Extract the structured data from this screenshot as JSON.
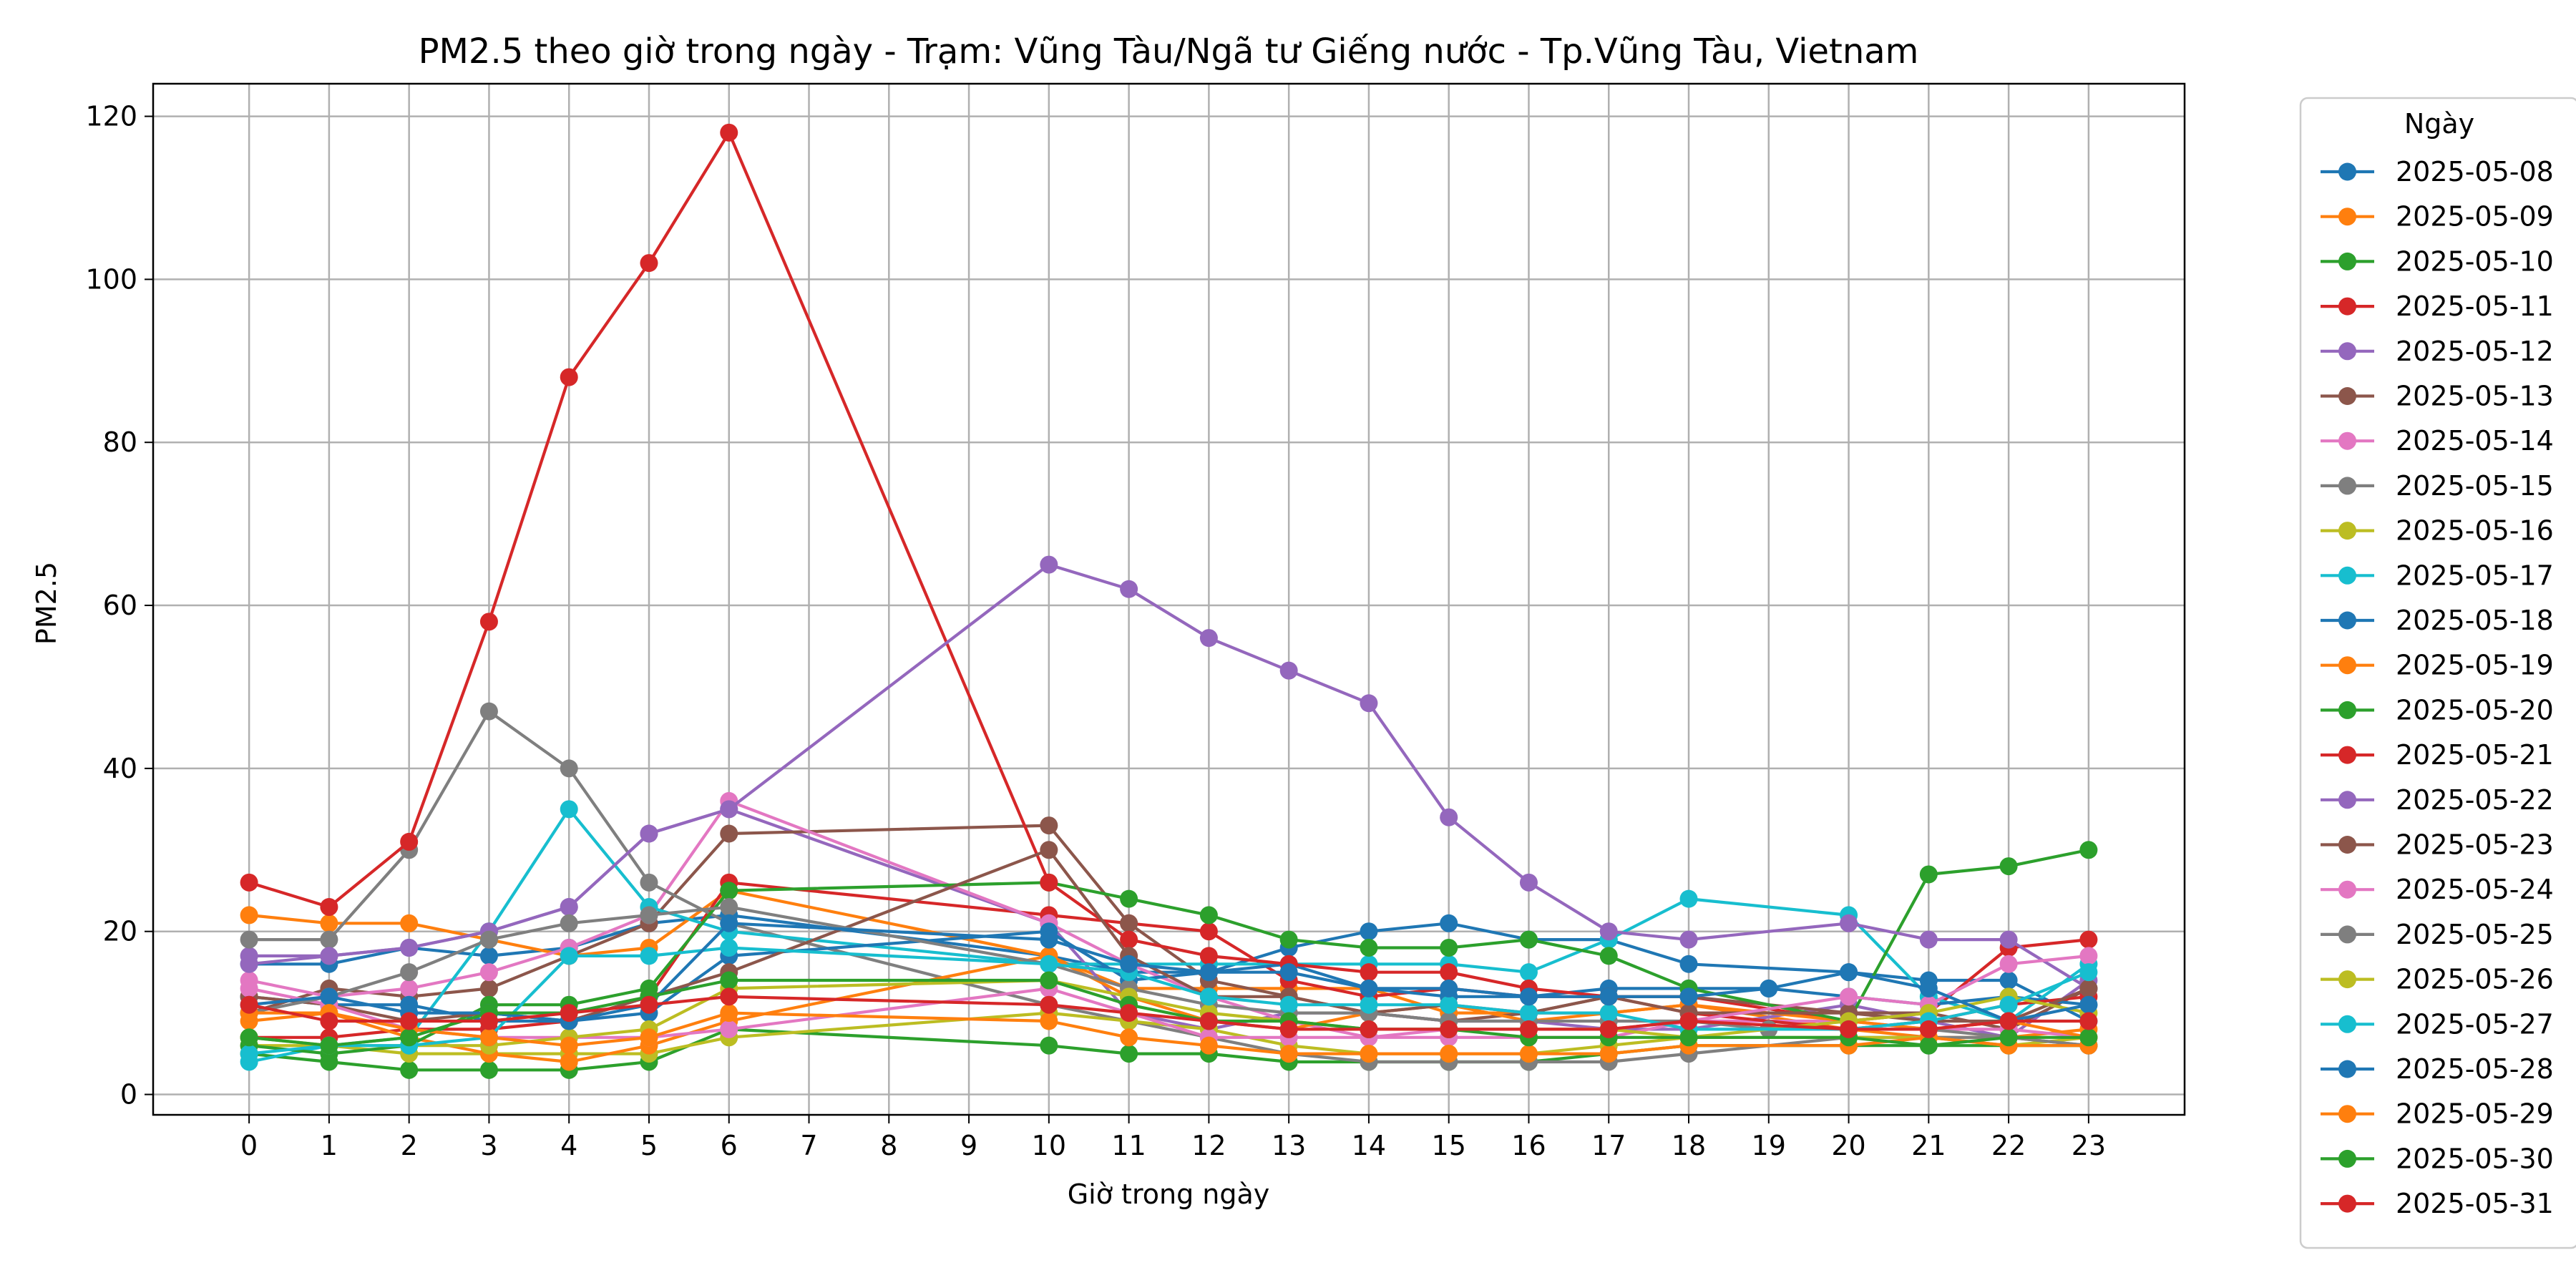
{
  "chart_data": {
    "type": "line",
    "title": "PM2.5 theo giờ trong ngày - Trạm: Vũng Tàu/Ngã tư Giếng nước - Tp.Vũng Tàu, Vietnam",
    "xlabel": "Giờ trong ngày",
    "ylabel": "PM2.5",
    "xticks": [
      0,
      1,
      2,
      3,
      4,
      5,
      6,
      7,
      8,
      9,
      10,
      11,
      12,
      13,
      14,
      15,
      16,
      17,
      18,
      19,
      20,
      21,
      22,
      23
    ],
    "yticks": [
      0,
      20,
      40,
      60,
      80,
      100,
      120
    ],
    "xlim": [
      -1.2,
      24.2
    ],
    "ylim": [
      -2.5,
      124
    ],
    "grid": true,
    "legend": {
      "title": "Ngày",
      "placement": "outside-right"
    },
    "series": [
      {
        "name": "2025-05-08",
        "color": "#1f77b4",
        "x": [
          0,
          1,
          2,
          3,
          4,
          5,
          6,
          10,
          11,
          12,
          13,
          14,
          15,
          16,
          17,
          18,
          20,
          21,
          22,
          23
        ],
        "y": [
          16,
          16,
          18,
          17,
          18,
          21,
          22,
          17,
          15,
          15,
          18,
          20,
          21,
          19,
          19,
          16,
          15,
          14,
          14,
          9
        ]
      },
      {
        "name": "2025-05-09",
        "color": "#ff7f0e",
        "x": [
          0,
          1,
          2,
          3,
          4,
          5,
          6,
          10,
          11,
          12,
          13,
          14,
          15,
          16,
          17,
          18,
          20,
          21,
          22,
          23
        ],
        "y": [
          22,
          21,
          21,
          19,
          17,
          18,
          25,
          17,
          13,
          13,
          13,
          13,
          10,
          10,
          10,
          11,
          8,
          7,
          7,
          8
        ]
      },
      {
        "name": "2025-05-10",
        "color": "#2ca02c",
        "x": [
          0,
          1,
          2,
          3,
          4,
          5,
          6,
          10,
          11,
          12,
          13,
          14,
          15,
          16,
          17,
          18,
          20,
          21,
          22,
          23
        ],
        "y": [
          5,
          4,
          3,
          3,
          3,
          4,
          8,
          6,
          5,
          5,
          4,
          4,
          4,
          4,
          5,
          6,
          6,
          6,
          6,
          6
        ]
      },
      {
        "name": "2025-05-11",
        "color": "#d62728",
        "x": [
          0,
          1,
          2,
          3,
          4,
          5,
          6,
          10,
          11,
          12,
          13,
          14,
          15,
          16,
          17,
          18,
          20,
          21,
          22,
          23
        ],
        "y": [
          7,
          7,
          8,
          8,
          9,
          12,
          26,
          22,
          21,
          20,
          14,
          12,
          13,
          12,
          12,
          12,
          9,
          10,
          18,
          19
        ]
      },
      {
        "name": "2025-05-12",
        "color": "#9467bd",
        "x": [
          0,
          1,
          2,
          3,
          4,
          5,
          6,
          10,
          11,
          12,
          13,
          14,
          15,
          16,
          17,
          18,
          20,
          21,
          22,
          23
        ],
        "y": [
          17,
          17,
          18,
          20,
          23,
          32,
          35,
          21,
          10,
          8,
          10,
          10,
          9,
          9,
          8,
          8,
          11,
          9,
          7,
          14
        ]
      },
      {
        "name": "2025-05-13",
        "color": "#8c564b",
        "x": [
          0,
          1,
          2,
          3,
          4,
          5,
          6,
          10,
          11,
          12,
          13,
          14,
          15,
          16,
          17,
          18,
          20,
          21,
          22,
          23
        ],
        "y": [
          10,
          13,
          12,
          13,
          17,
          21,
          32,
          33,
          21,
          14,
          12,
          10,
          9,
          10,
          12,
          12,
          10,
          10,
          8,
          13
        ]
      },
      {
        "name": "2025-05-14",
        "color": "#e377c2",
        "x": [
          0,
          1,
          2,
          3,
          4,
          5,
          6,
          10,
          11,
          12,
          13,
          14,
          15,
          16,
          17,
          18,
          20,
          21,
          22,
          23
        ],
        "y": [
          14,
          12,
          13,
          15,
          18,
          22,
          36,
          21,
          16,
          12,
          9,
          7,
          7,
          7,
          7,
          9,
          9,
          8,
          8,
          7
        ]
      },
      {
        "name": "2025-05-15",
        "color": "#7f7f7f",
        "x": [
          0,
          1,
          2,
          3,
          4,
          5,
          6,
          10,
          11,
          12,
          13,
          14,
          15,
          16,
          17,
          18,
          20,
          21,
          22,
          23
        ],
        "y": [
          19,
          19,
          30,
          47,
          40,
          26,
          21,
          11,
          9,
          7,
          5,
          4,
          4,
          4,
          4,
          5,
          7,
          7,
          7,
          6
        ]
      },
      {
        "name": "2025-05-16",
        "color": "#bcbd22",
        "x": [
          0,
          1,
          2,
          3,
          4,
          5,
          6,
          10,
          11,
          12,
          13,
          14,
          15,
          16,
          17,
          18,
          20,
          21,
          22,
          23
        ],
        "y": [
          6,
          6,
          5,
          5,
          5,
          5,
          7,
          10,
          9,
          8,
          6,
          5,
          5,
          5,
          6,
          7,
          7,
          7,
          6,
          7
        ]
      },
      {
        "name": "2025-05-17",
        "color": "#17becf",
        "x": [
          0,
          1,
          2,
          3,
          4,
          5,
          6,
          10,
          11,
          12,
          13,
          14,
          15,
          16,
          17,
          18,
          20,
          21,
          22,
          23
        ],
        "y": [
          4,
          6,
          7,
          20,
          35,
          23,
          20,
          16,
          16,
          16,
          16,
          16,
          16,
          15,
          19,
          24,
          22,
          12,
          9,
          16
        ]
      },
      {
        "name": "2025-05-18",
        "color": "#1f77b4",
        "x": [
          0,
          1,
          2,
          3,
          4,
          5,
          6,
          10,
          11,
          12,
          13,
          14,
          15,
          16,
          17,
          18,
          19,
          20,
          21,
          22,
          23
        ],
        "y": [
          12,
          11,
          11,
          9,
          9,
          10,
          17,
          20,
          14,
          15,
          16,
          13,
          12,
          12,
          13,
          13,
          13,
          12,
          11,
          12,
          11
        ]
      },
      {
        "name": "2025-05-19",
        "color": "#ff7f0e",
        "x": [
          0,
          1,
          2,
          3,
          4,
          5,
          6,
          10,
          11,
          12,
          13,
          14,
          15,
          16,
          17,
          18,
          20,
          21,
          22,
          23
        ],
        "y": [
          9,
          10,
          7,
          5,
          4,
          6,
          9,
          17,
          12,
          9,
          8,
          10,
          11,
          9,
          10,
          11,
          9,
          8,
          9,
          7
        ]
      },
      {
        "name": "2025-05-20",
        "color": "#2ca02c",
        "x": [
          0,
          1,
          2,
          3,
          4,
          5,
          6,
          10,
          11,
          12,
          13,
          14,
          15,
          16,
          17,
          18,
          20,
          21,
          22,
          23
        ],
        "y": [
          6,
          5,
          6,
          11,
          11,
          13,
          25,
          26,
          24,
          22,
          19,
          18,
          18,
          19,
          17,
          13,
          9,
          27,
          28,
          30
        ]
      },
      {
        "name": "2025-05-21",
        "color": "#d62728",
        "x": [
          0,
          1,
          2,
          3,
          4,
          5,
          6,
          10,
          11,
          12,
          13,
          14,
          15,
          16,
          17,
          18,
          20,
          21,
          22,
          23
        ],
        "y": [
          26,
          23,
          31,
          58,
          88,
          102,
          118,
          26,
          19,
          17,
          16,
          15,
          15,
          13,
          12,
          10,
          8,
          9,
          11,
          12
        ]
      },
      {
        "name": "2025-05-22",
        "color": "#9467bd",
        "x": [
          0,
          1,
          2,
          3,
          4,
          5,
          6,
          10,
          11,
          12,
          13,
          14,
          15,
          16,
          17,
          18,
          20,
          21,
          22,
          23
        ],
        "y": [
          16,
          17,
          18,
          20,
          23,
          32,
          35,
          65,
          62,
          56,
          52,
          48,
          34,
          26,
          20,
          19,
          21,
          19,
          19,
          13
        ]
      },
      {
        "name": "2025-05-23",
        "color": "#8c564b",
        "x": [
          0,
          1,
          2,
          3,
          4,
          5,
          6,
          10,
          11,
          12,
          13,
          14,
          15,
          16,
          17,
          18,
          20,
          21,
          22,
          23
        ],
        "y": [
          12,
          11,
          9,
          10,
          9,
          12,
          15,
          30,
          17,
          12,
          12,
          10,
          11,
          10,
          12,
          10,
          10,
          9,
          9,
          13
        ]
      },
      {
        "name": "2025-05-24",
        "color": "#e377c2",
        "x": [
          0,
          1,
          2,
          3,
          4,
          5,
          6,
          10,
          11,
          12,
          13,
          14,
          15,
          16,
          17,
          18,
          20,
          21,
          22,
          23
        ],
        "y": [
          13,
          11,
          8,
          7,
          7,
          7,
          8,
          13,
          10,
          7,
          7,
          7,
          8,
          8,
          8,
          9,
          12,
          11,
          16,
          17
        ]
      },
      {
        "name": "2025-05-25",
        "color": "#7f7f7f",
        "x": [
          0,
          1,
          2,
          3,
          4,
          5,
          6,
          10,
          11,
          12,
          13,
          14,
          15,
          16,
          17,
          18,
          19,
          20,
          21,
          22,
          23
        ],
        "y": [
          10,
          12,
          15,
          19,
          21,
          22,
          23,
          16,
          13,
          11,
          10,
          10,
          9,
          9,
          9,
          9,
          8,
          8,
          8,
          7,
          6
        ]
      },
      {
        "name": "2025-05-26",
        "color": "#bcbd22",
        "x": [
          0,
          1,
          2,
          3,
          4,
          5,
          6,
          10,
          11,
          12,
          13,
          14,
          15,
          16,
          17,
          18,
          20,
          21,
          22,
          23
        ],
        "y": [
          7,
          6,
          6,
          6,
          7,
          8,
          13,
          14,
          12,
          10,
          9,
          8,
          8,
          8,
          8,
          7,
          9,
          10,
          12,
          10
        ]
      },
      {
        "name": "2025-05-27",
        "color": "#17becf",
        "x": [
          0,
          1,
          2,
          3,
          4,
          5,
          6,
          10,
          11,
          12,
          13,
          14,
          15,
          16,
          17,
          18,
          20,
          21,
          22,
          23
        ],
        "y": [
          5,
          6,
          6,
          7,
          17,
          17,
          18,
          16,
          15,
          12,
          11,
          11,
          11,
          10,
          10,
          8,
          8,
          9,
          11,
          15
        ]
      },
      {
        "name": "2025-05-28",
        "color": "#1f77b4",
        "x": [
          0,
          1,
          2,
          3,
          4,
          5,
          6,
          10,
          11,
          12,
          13,
          14,
          15,
          16,
          17,
          18,
          19,
          20,
          21,
          22,
          23
        ],
        "y": [
          11,
          12,
          10,
          10,
          9,
          11,
          21,
          19,
          16,
          15,
          15,
          13,
          13,
          12,
          12,
          12,
          13,
          15,
          13,
          9,
          11
        ]
      },
      {
        "name": "2025-05-29",
        "color": "#ff7f0e",
        "x": [
          0,
          1,
          2,
          3,
          4,
          5,
          6,
          10,
          11,
          12,
          13,
          14,
          15,
          16,
          17,
          18,
          20,
          21,
          22,
          23
        ],
        "y": [
          10,
          10,
          8,
          7,
          6,
          7,
          10,
          9,
          7,
          6,
          5,
          5,
          5,
          5,
          5,
          6,
          6,
          7,
          6,
          6
        ]
      },
      {
        "name": "2025-05-30",
        "color": "#2ca02c",
        "x": [
          0,
          1,
          2,
          3,
          4,
          5,
          6,
          10,
          11,
          12,
          13,
          14,
          15,
          16,
          17,
          18,
          20,
          21,
          22,
          23
        ],
        "y": [
          7,
          6,
          7,
          10,
          10,
          12,
          14,
          14,
          11,
          9,
          9,
          8,
          8,
          7,
          7,
          7,
          7,
          6,
          7,
          7
        ]
      },
      {
        "name": "2025-05-31",
        "color": "#d62728",
        "x": [
          0,
          1,
          2,
          3,
          4,
          5,
          6,
          10,
          11,
          12,
          13,
          14,
          15,
          16,
          17,
          18,
          20,
          21,
          22,
          23
        ],
        "y": [
          11,
          9,
          9,
          9,
          10,
          11,
          12,
          11,
          10,
          9,
          8,
          8,
          8,
          8,
          8,
          9,
          8,
          8,
          9,
          9
        ]
      }
    ]
  }
}
